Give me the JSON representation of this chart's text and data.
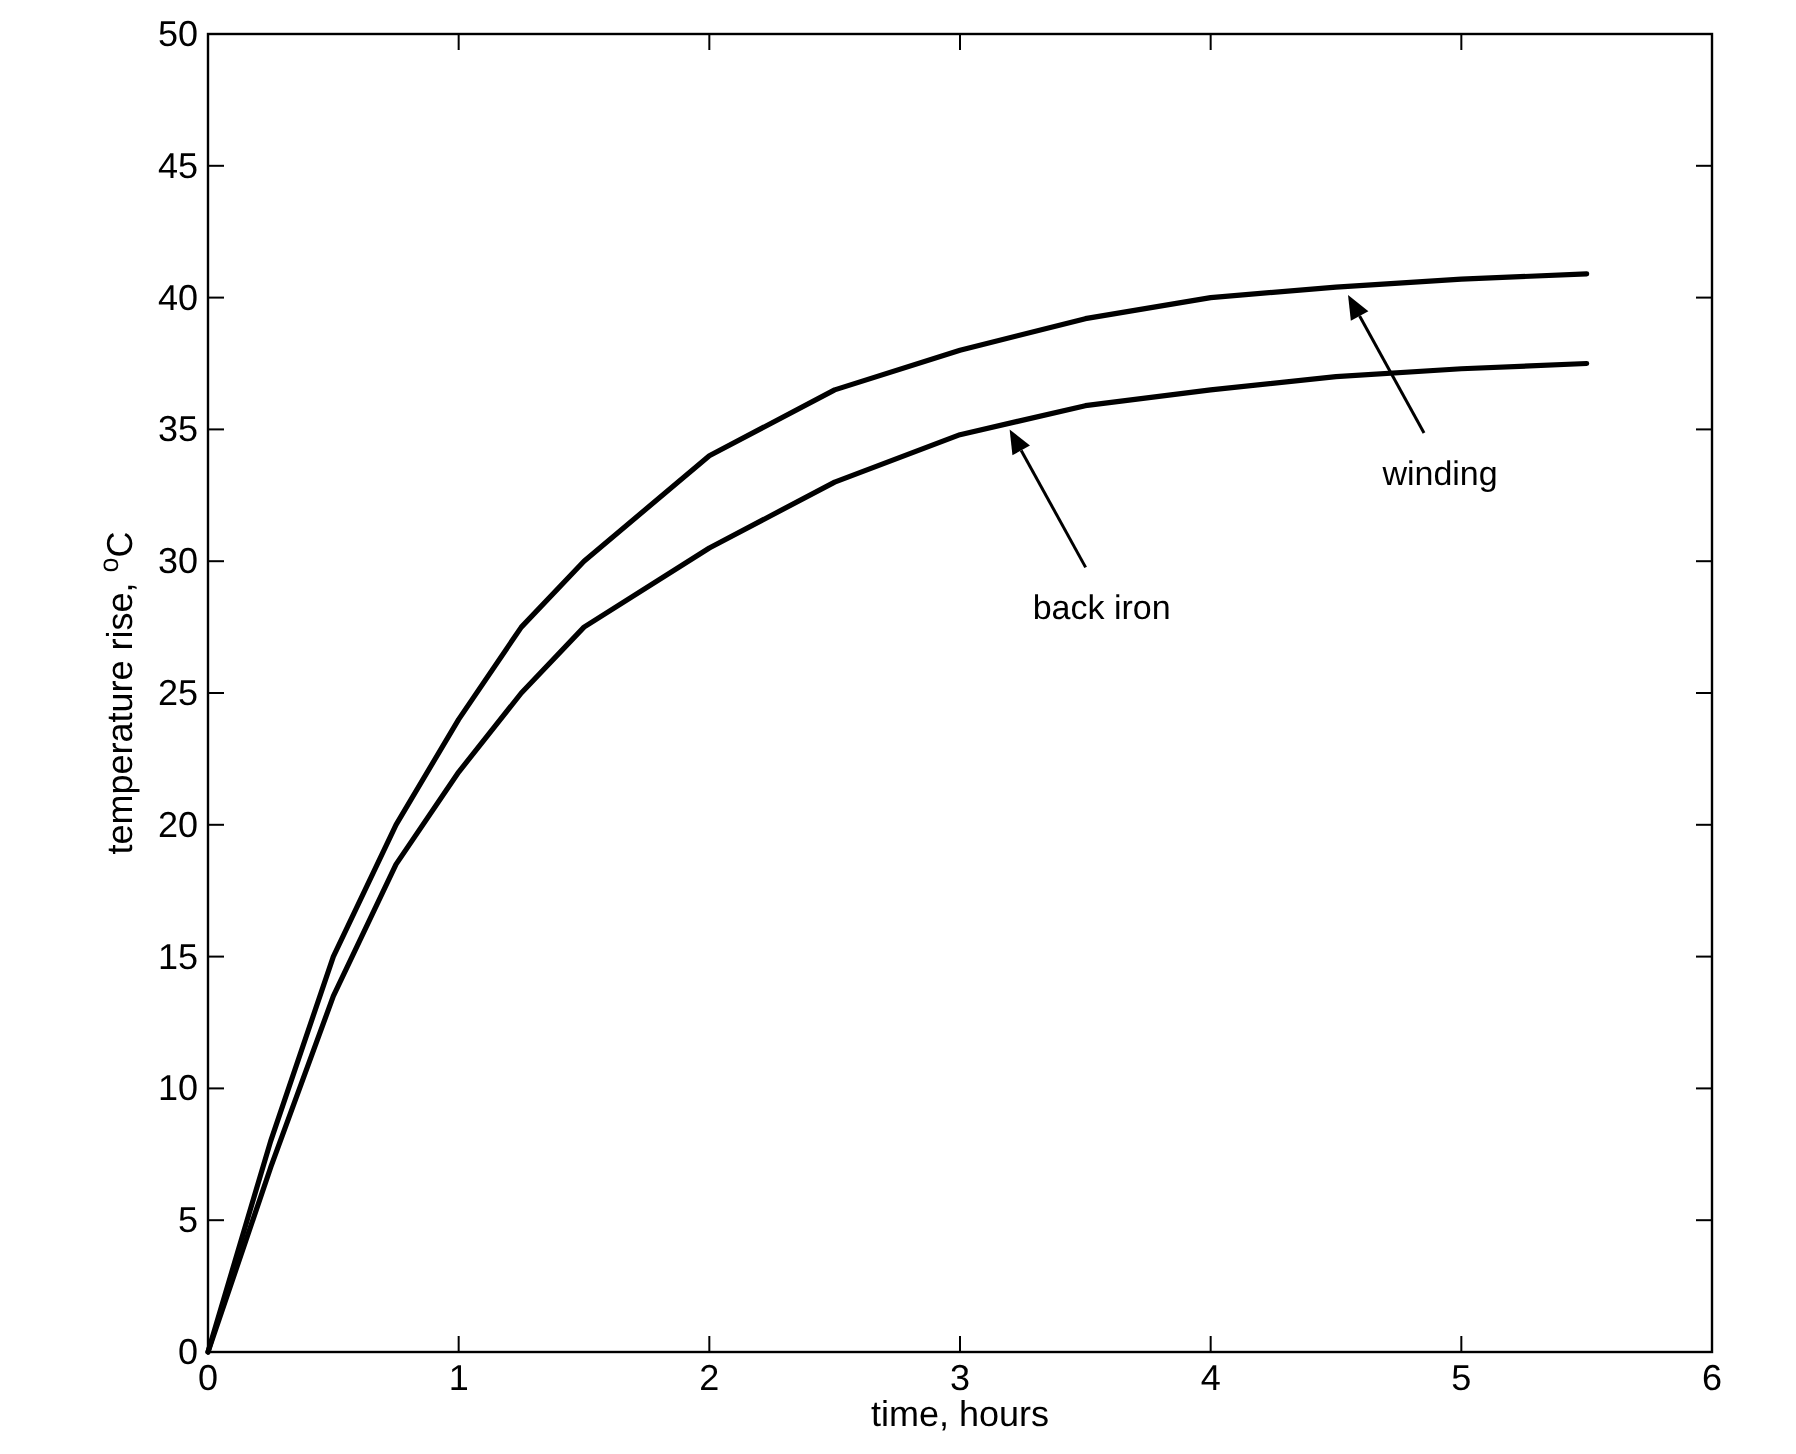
{
  "chart_data": {
    "type": "line",
    "xlabel": "time, hours",
    "ylabel": "temperature rise, $^{o}$C",
    "xlim": [
      0,
      6
    ],
    "xticks": [
      0,
      1,
      2,
      3,
      4,
      5,
      6
    ],
    "ylim": [
      0,
      50
    ],
    "yticks": [
      0,
      5,
      10,
      15,
      20,
      25,
      30,
      35,
      40,
      45,
      50
    ],
    "grid": false,
    "marker": "none",
    "line_style": "solid",
    "x": [
      0,
      0.25,
      0.5,
      0.75,
      1,
      1.25,
      1.5,
      2,
      2.5,
      3,
      3.5,
      4,
      4.5,
      5,
      5.5
    ],
    "series": [
      {
        "color": "#000000",
        "values": [
          0,
          8,
          15,
          20,
          24,
          27.5,
          30,
          34,
          36.5,
          38,
          39.2,
          40,
          40.4,
          40.7,
          40.9
        ]
      },
      {
        "color": "#000000",
        "values": [
          0,
          7,
          13.5,
          18.5,
          22,
          25,
          27.5,
          30.5,
          33,
          34.8,
          35.9,
          36.5,
          37,
          37.3,
          37.5
        ]
      }
    ],
    "annotations": [
      "winding",
      "back iron"
    ]
  }
}
